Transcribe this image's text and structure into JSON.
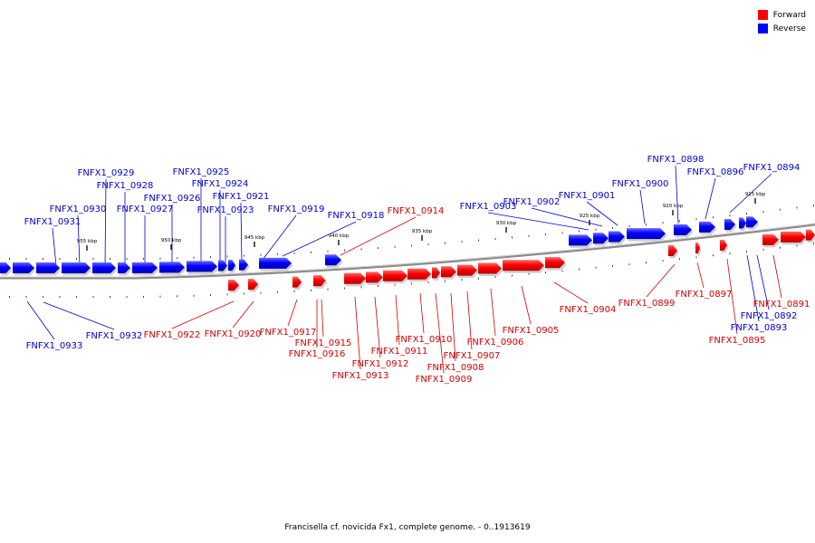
{
  "legend": {
    "forward_label": "Forward",
    "reverse_label": "Reverse",
    "forward_color": "#ff0000",
    "reverse_color": "#0000ff"
  },
  "footer": {
    "caption": "Francisella cf. novicida Fx1, complete genome. - 0..1913619"
  },
  "axis_ticks": [
    "955 kbp",
    "950 kbp",
    "945 kbp",
    "940 kbp",
    "935 kbp",
    "930 kbp",
    "925 kbp",
    "920 kbp",
    "915 kbp"
  ],
  "genes": [
    "FNFX1_0933",
    "FNFX1_0932",
    "FNFX1_0931",
    "FNFX1_0930",
    "FNFX1_0929",
    "FNFX1_0928",
    "FNFX1_0927",
    "FNFX1_0926",
    "FNFX1_0925",
    "FNFX1_0924",
    "FNFX1_0923",
    "FNFX1_0922",
    "FNFX1_0921",
    "FNFX1_0920",
    "FNFX1_0919",
    "FNFX1_0918",
    "FNFX1_0917",
    "FNFX1_0916",
    "FNFX1_0915",
    "FNFX1_0914",
    "FNFX1_0913",
    "FNFX1_0912",
    "FNFX1_0911",
    "FNFX1_0910",
    "FNFX1_0909",
    "FNFX1_0908",
    "FNFX1_0907",
    "FNFX1_0906",
    "FNFX1_0905",
    "FNFX1_0904",
    "FNFX1_0903",
    "FNFX1_0902",
    "FNFX1_0901",
    "FNFX1_0900",
    "FNFX1_0899",
    "FNFX1_0898",
    "FNFX1_0897",
    "FNFX1_0896",
    "FNFX1_0895",
    "FNFX1_0894",
    "FNFX1_0893",
    "FNFX1_0892",
    "FNFX1_0891"
  ]
}
